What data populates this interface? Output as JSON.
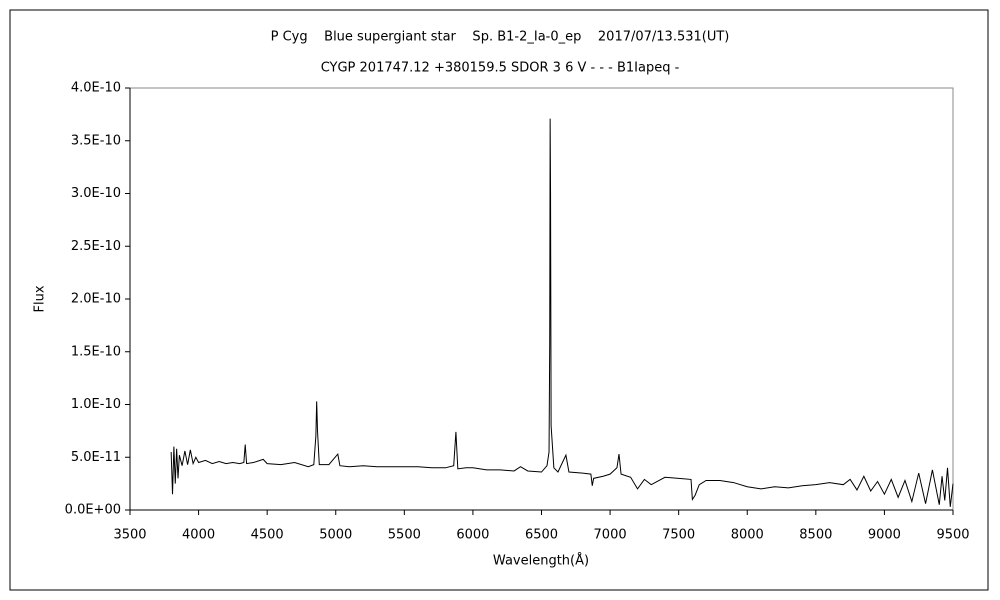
{
  "chart_data": {
    "type": "line",
    "title": "P Cyg    Blue supergiant star    Sp. B1-2_Ia-0_ep    2017/07/13.531(UT)",
    "subtitle": "CYGP 201747.12 +380159.5 SDOR 3 6 V - - - B1Iapeq -",
    "xlabel": "Wavelength(Å)",
    "ylabel": "Flux",
    "color": "#000000",
    "grid": false,
    "xlim": [
      3500,
      9500
    ],
    "ylim": [
      0,
      4e-10
    ],
    "xticks": [
      3500,
      4000,
      4500,
      5000,
      5500,
      6000,
      6500,
      7000,
      7500,
      8000,
      8500,
      9000,
      9500
    ],
    "yticks": [
      {
        "value": 0,
        "label": "0.0E+00"
      },
      {
        "value": 5e-11,
        "label": "5.0E-11"
      },
      {
        "value": 1e-10,
        "label": "1.0E-10"
      },
      {
        "value": 1.5e-10,
        "label": "1.5E-10"
      },
      {
        "value": 2e-10,
        "label": "2.0E-10"
      },
      {
        "value": 2.5e-10,
        "label": "2.5E-10"
      },
      {
        "value": 3e-10,
        "label": "3.0E-10"
      },
      {
        "value": 3.5e-10,
        "label": "3.5E-10"
      },
      {
        "value": 4e-10,
        "label": "4.0E-10"
      }
    ],
    "x": [
      3800,
      3810,
      3820,
      3830,
      3840,
      3850,
      3860,
      3880,
      3900,
      3920,
      3940,
      3960,
      3980,
      4000,
      4050,
      4100,
      4150,
      4200,
      4250,
      4300,
      4330,
      4340,
      4350,
      4400,
      4471,
      4500,
      4600,
      4700,
      4800,
      4840,
      4855,
      4861,
      4867,
      4880,
      4950,
      5015,
      5030,
      5100,
      5200,
      5300,
      5400,
      5500,
      5600,
      5700,
      5800,
      5860,
      5876,
      5890,
      5950,
      6000,
      6100,
      6200,
      6300,
      6347,
      6400,
      6500,
      6540,
      6555,
      6560,
      6563,
      6566,
      6570,
      6590,
      6620,
      6678,
      6700,
      6800,
      6860,
      6870,
      6880,
      6950,
      7000,
      7050,
      7065,
      7080,
      7150,
      7200,
      7250,
      7300,
      7400,
      7500,
      7590,
      7600,
      7620,
      7650,
      7700,
      7800,
      7900,
      8000,
      8100,
      8200,
      8300,
      8400,
      8500,
      8600,
      8700,
      8750,
      8800,
      8850,
      8900,
      8950,
      9000,
      9050,
      9100,
      9150,
      9200,
      9250,
      9300,
      9350,
      9400,
      9420,
      9440,
      9460,
      9480,
      9500
    ],
    "values": [
      5.5e-11,
      1.5e-11,
      6e-11,
      2.5e-11,
      5.8e-11,
      3e-11,
      5.2e-11,
      4.2e-11,
      5.6e-11,
      4.3e-11,
      5.7e-11,
      4.4e-11,
      5e-11,
      4.5e-11,
      4.7e-11,
      4.4e-11,
      4.6e-11,
      4.4e-11,
      4.5e-11,
      4.4e-11,
      4.5e-11,
      6.2e-11,
      4.4e-11,
      4.5e-11,
      4.8e-11,
      4.4e-11,
      4.3e-11,
      4.5e-11,
      4.1e-11,
      4.3e-11,
      7e-11,
      1.03e-10,
      7.5e-11,
      4.3e-11,
      4.3e-11,
      5.3e-11,
      4.2e-11,
      4.1e-11,
      4.2e-11,
      4.1e-11,
      4.1e-11,
      4.1e-11,
      4.1e-11,
      4e-11,
      4e-11,
      4.2e-11,
      7.4e-11,
      3.9e-11,
      4e-11,
      4e-11,
      3.8e-11,
      3.8e-11,
      3.7e-11,
      4.1e-11,
      3.7e-11,
      3.6e-11,
      4.2e-11,
      5.5e-11,
      1.6e-10,
      3.71e-10,
      3e-10,
      8e-11,
      4e-11,
      3.6e-11,
      5.2e-11,
      3.6e-11,
      3.5e-11,
      3.4e-11,
      2.3e-11,
      3e-11,
      3.2e-11,
      3.4e-11,
      4e-11,
      5.3e-11,
      3.4e-11,
      3.1e-11,
      2e-11,
      2.9e-11,
      2.4e-11,
      3.1e-11,
      3e-11,
      2.9e-11,
      1e-11,
      1.4e-11,
      2.4e-11,
      2.8e-11,
      2.8e-11,
      2.6e-11,
      2.2e-11,
      2e-11,
      2.2e-11,
      2.1e-11,
      2.3e-11,
      2.4e-11,
      2.6e-11,
      2.4e-11,
      2.9e-11,
      1.9e-11,
      3.2e-11,
      1.8e-11,
      2.7e-11,
      1.5e-11,
      2.9e-11,
      1.2e-11,
      2.8e-11,
      8e-12,
      3.5e-11,
      6e-12,
      3.8e-11,
      5e-12,
      3.2e-11,
      9e-12,
      4e-11,
      3e-12,
      2.5e-11
    ]
  }
}
